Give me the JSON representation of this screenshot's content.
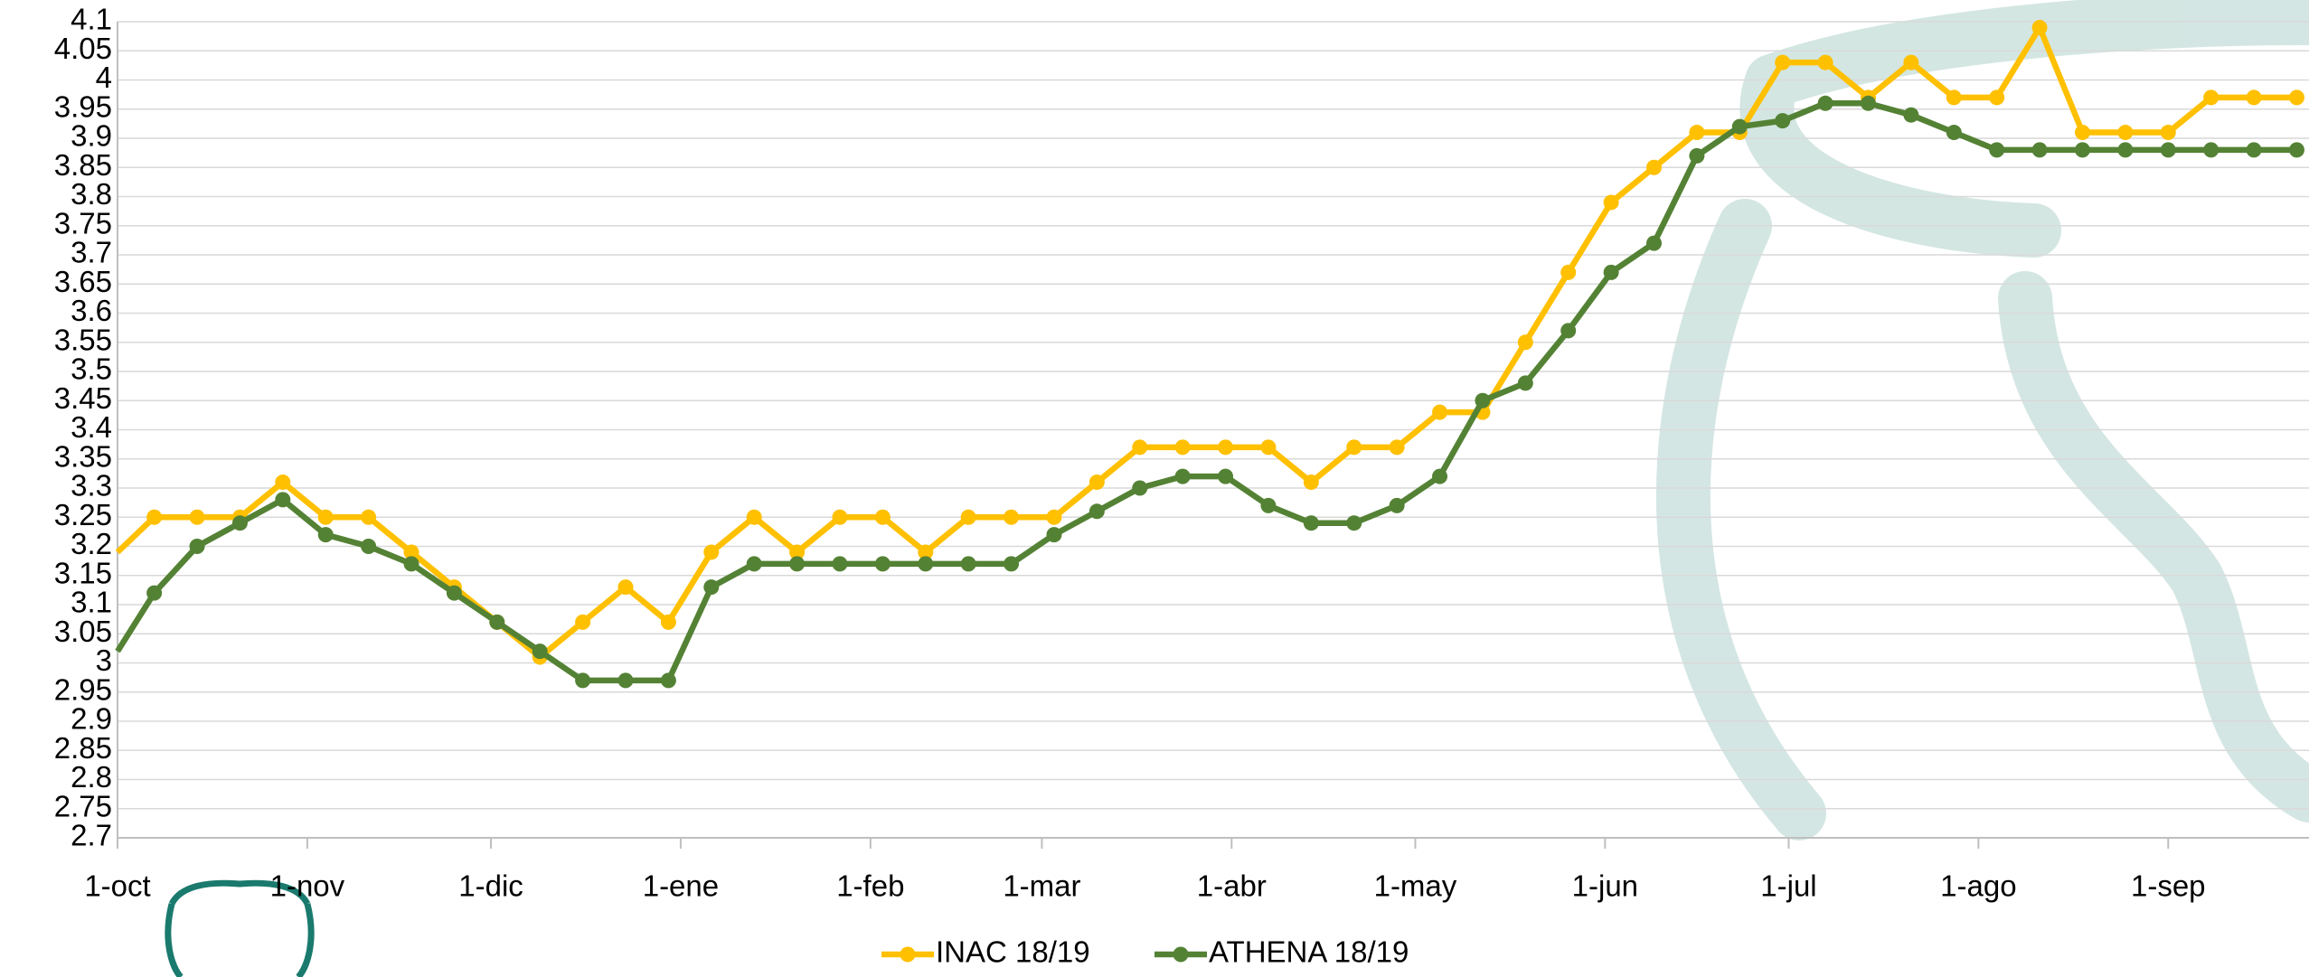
{
  "chart_data": {
    "type": "line",
    "x": [
      0,
      6,
      13,
      20,
      27,
      34,
      41,
      48,
      55,
      62,
      69,
      76,
      83,
      90,
      97,
      104,
      111,
      118,
      125,
      132,
      139,
      146,
      153,
      160,
      167,
      174,
      181,
      188,
      195,
      202,
      209,
      216,
      223,
      230,
      237,
      244,
      251,
      258,
      265,
      272,
      279,
      286,
      293,
      300,
      307,
      314,
      321,
      328,
      335,
      342,
      349,
      356
    ],
    "series": [
      {
        "name": "INAC 18/19",
        "color": "#ffc000",
        "values": [
          3.19,
          3.25,
          3.25,
          3.25,
          3.31,
          3.25,
          3.25,
          3.19,
          3.13,
          3.07,
          3.01,
          3.07,
          3.13,
          3.07,
          3.19,
          3.25,
          3.19,
          3.25,
          3.25,
          3.19,
          3.25,
          3.25,
          3.25,
          3.31,
          3.37,
          3.37,
          3.37,
          3.37,
          3.31,
          3.37,
          3.37,
          3.43,
          3.43,
          3.55,
          3.67,
          3.79,
          3.85,
          3.91,
          3.91,
          4.03,
          4.03,
          3.97,
          4.03,
          3.97,
          3.97,
          4.09,
          3.91,
          3.91,
          3.91,
          3.97,
          3.97,
          3.97
        ]
      },
      {
        "name": "ATHENA 18/19",
        "color": "#548235",
        "values": [
          3.02,
          3.12,
          3.2,
          3.24,
          3.28,
          3.22,
          3.2,
          3.17,
          3.12,
          3.07,
          3.02,
          2.97,
          2.97,
          2.97,
          3.13,
          3.17,
          3.17,
          3.17,
          3.17,
          3.17,
          3.17,
          3.17,
          3.22,
          3.26,
          3.3,
          3.32,
          3.32,
          3.27,
          3.24,
          3.24,
          3.27,
          3.32,
          3.45,
          3.48,
          3.57,
          3.67,
          3.72,
          3.87,
          3.92,
          3.93,
          3.96,
          3.96,
          3.94,
          3.91,
          3.88,
          3.88,
          3.88,
          3.88,
          3.88,
          3.88,
          3.88,
          3.88
        ]
      }
    ],
    "xlim": [
      0,
      358
    ],
    "xticks": [
      {
        "value": 0,
        "label": "1-oct"
      },
      {
        "value": 31,
        "label": "1-nov"
      },
      {
        "value": 61,
        "label": "1-dic"
      },
      {
        "value": 92,
        "label": "1-ene"
      },
      {
        "value": 123,
        "label": "1-feb"
      },
      {
        "value": 151,
        "label": "1-mar"
      },
      {
        "value": 182,
        "label": "1-abr"
      },
      {
        "value": 212,
        "label": "1-may"
      },
      {
        "value": 243,
        "label": "1-jun"
      },
      {
        "value": 273,
        "label": "1-jul"
      },
      {
        "value": 304,
        "label": "1-ago"
      },
      {
        "value": 335,
        "label": "1-sep"
      }
    ],
    "ylim": [
      2.7,
      4.1
    ],
    "yticks": [
      2.7,
      2.75,
      2.8,
      2.85,
      2.9,
      2.95,
      3,
      3.05,
      3.1,
      3.15,
      3.2,
      3.25,
      3.3,
      3.35,
      3.4,
      3.45,
      3.5,
      3.55,
      3.6,
      3.65,
      3.7,
      3.75,
      3.8,
      3.85,
      3.9,
      3.95,
      4,
      4.05,
      4.1
    ],
    "grid": true,
    "legend": "bottom"
  }
}
